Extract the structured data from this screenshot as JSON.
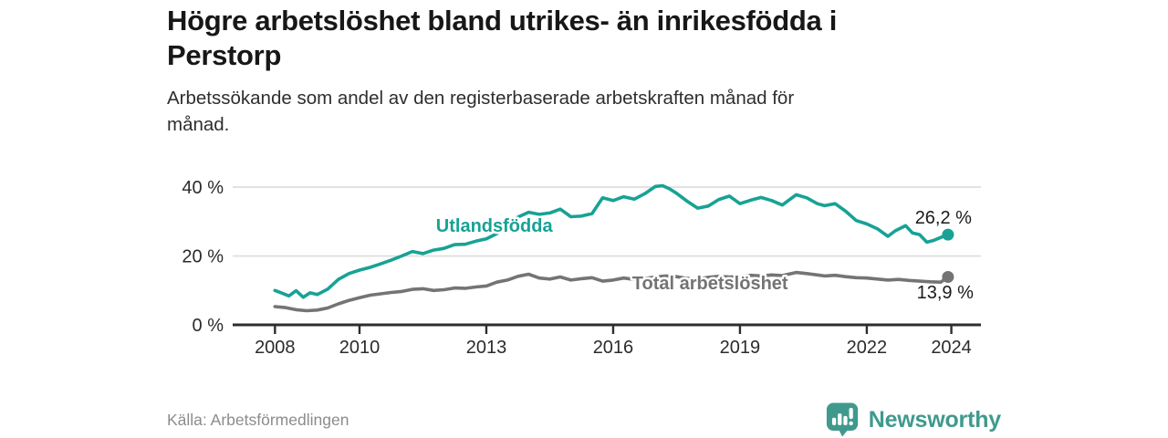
{
  "header": {
    "title_lines": [
      "Högre arbetslöshet bland utrikes- än inrikesfödda i",
      "Perstorp"
    ],
    "subtitle_lines": [
      "Arbetssökande som andel av den registerbaserade arbetskraften månad för",
      "månad."
    ]
  },
  "chart_data": {
    "type": "line",
    "title": "Högre arbetslöshet bland utrikes- än inrikesfödda i Perstorp",
    "subtitle": "Arbetssökande som andel av den registerbaserade arbetskraften månad för månad.",
    "xlabel": "",
    "ylabel": "",
    "grid": "horizontal",
    "legend_position": "inline-labels",
    "x_domain": [
      2007,
      2024.7
    ],
    "ylim": [
      0,
      42.4
    ],
    "yticks": [
      {
        "value": 0,
        "label": "0 %"
      },
      {
        "value": 20,
        "label": "20 %"
      },
      {
        "value": 40,
        "label": "40 %"
      }
    ],
    "xticks": [
      {
        "value": 2008,
        "label": "2008"
      },
      {
        "value": 2010,
        "label": "2010"
      },
      {
        "value": 2013,
        "label": "2013"
      },
      {
        "value": 2016,
        "label": "2016"
      },
      {
        "value": 2019,
        "label": "2019"
      },
      {
        "value": 2022,
        "label": "2022"
      },
      {
        "value": 2024,
        "label": "2024"
      }
    ],
    "series": [
      {
        "name": "Utlandsfödda",
        "color": "#17A295",
        "label": {
          "text": "Utlandsfödda",
          "x": 2011.81,
          "y": 27.0
        },
        "end_label": {
          "text": "26,2 %",
          "x": 2023.14,
          "y": 29.4
        },
        "end_value": 26.2,
        "points": [
          [
            2008.0,
            10.0
          ],
          [
            2008.17,
            9.2
          ],
          [
            2008.33,
            8.4
          ],
          [
            2008.5,
            9.9
          ],
          [
            2008.67,
            8.0
          ],
          [
            2008.83,
            9.3
          ],
          [
            2009.0,
            8.8
          ],
          [
            2009.25,
            10.4
          ],
          [
            2009.5,
            13.2
          ],
          [
            2009.75,
            14.9
          ],
          [
            2010.0,
            15.9
          ],
          [
            2010.25,
            16.7
          ],
          [
            2010.5,
            17.7
          ],
          [
            2010.75,
            18.8
          ],
          [
            2011.0,
            20.0
          ],
          [
            2011.25,
            21.3
          ],
          [
            2011.5,
            20.7
          ],
          [
            2011.75,
            21.7
          ],
          [
            2012.0,
            22.2
          ],
          [
            2012.25,
            23.3
          ],
          [
            2012.5,
            23.4
          ],
          [
            2012.75,
            24.3
          ],
          [
            2013.0,
            25.0
          ],
          [
            2013.25,
            26.5
          ],
          [
            2013.5,
            28.8
          ],
          [
            2013.75,
            31.3
          ],
          [
            2014.0,
            32.7
          ],
          [
            2014.25,
            32.1
          ],
          [
            2014.5,
            32.5
          ],
          [
            2014.75,
            33.6
          ],
          [
            2015.0,
            31.4
          ],
          [
            2015.25,
            31.6
          ],
          [
            2015.5,
            32.3
          ],
          [
            2015.75,
            36.9
          ],
          [
            2016.0,
            36.1
          ],
          [
            2016.25,
            37.2
          ],
          [
            2016.5,
            36.5
          ],
          [
            2016.75,
            38.1
          ],
          [
            2017.0,
            40.2
          ],
          [
            2017.17,
            40.4
          ],
          [
            2017.33,
            39.5
          ],
          [
            2017.5,
            38.2
          ],
          [
            2017.75,
            35.9
          ],
          [
            2018.0,
            33.9
          ],
          [
            2018.25,
            34.5
          ],
          [
            2018.5,
            36.4
          ],
          [
            2018.75,
            37.4
          ],
          [
            2019.0,
            35.2
          ],
          [
            2019.25,
            36.2
          ],
          [
            2019.5,
            37.0
          ],
          [
            2019.75,
            36.1
          ],
          [
            2020.0,
            34.8
          ],
          [
            2020.33,
            37.8
          ],
          [
            2020.58,
            36.9
          ],
          [
            2020.83,
            35.2
          ],
          [
            2021.0,
            34.6
          ],
          [
            2021.25,
            35.2
          ],
          [
            2021.5,
            33.0
          ],
          [
            2021.75,
            30.3
          ],
          [
            2022.0,
            29.3
          ],
          [
            2022.25,
            27.9
          ],
          [
            2022.5,
            25.7
          ],
          [
            2022.67,
            27.3
          ],
          [
            2022.92,
            28.8
          ],
          [
            2023.08,
            26.7
          ],
          [
            2023.25,
            26.2
          ],
          [
            2023.42,
            24.0
          ],
          [
            2023.58,
            24.5
          ],
          [
            2023.75,
            25.4
          ],
          [
            2023.92,
            26.2
          ]
        ]
      },
      {
        "name": "Total arbetslöshet",
        "color": "#747474",
        "label": {
          "text": "Total arbetslöshet",
          "x": 2016.45,
          "y": 10.3
        },
        "end_label": {
          "text": "13,9 %",
          "x": 2023.18,
          "y": 7.7
        },
        "end_value": 13.9,
        "points": [
          [
            2008.0,
            5.3
          ],
          [
            2008.25,
            5.0
          ],
          [
            2008.5,
            4.4
          ],
          [
            2008.75,
            4.1
          ],
          [
            2009.0,
            4.3
          ],
          [
            2009.25,
            4.9
          ],
          [
            2009.5,
            6.1
          ],
          [
            2009.75,
            7.1
          ],
          [
            2010.0,
            7.9
          ],
          [
            2010.25,
            8.6
          ],
          [
            2010.5,
            9.0
          ],
          [
            2010.75,
            9.4
          ],
          [
            2011.0,
            9.7
          ],
          [
            2011.25,
            10.3
          ],
          [
            2011.5,
            10.5
          ],
          [
            2011.75,
            10.0
          ],
          [
            2012.0,
            10.2
          ],
          [
            2012.25,
            10.7
          ],
          [
            2012.5,
            10.6
          ],
          [
            2012.75,
            11.0
          ],
          [
            2013.0,
            11.3
          ],
          [
            2013.25,
            12.4
          ],
          [
            2013.5,
            13.0
          ],
          [
            2013.75,
            14.1
          ],
          [
            2014.0,
            14.7
          ],
          [
            2014.25,
            13.6
          ],
          [
            2014.5,
            13.3
          ],
          [
            2014.75,
            13.9
          ],
          [
            2015.0,
            13.0
          ],
          [
            2015.25,
            13.4
          ],
          [
            2015.5,
            13.7
          ],
          [
            2015.75,
            12.7
          ],
          [
            2016.0,
            13.0
          ],
          [
            2016.25,
            13.6
          ],
          [
            2016.5,
            13.2
          ],
          [
            2016.75,
            13.5
          ],
          [
            2017.0,
            13.9
          ],
          [
            2017.25,
            14.2
          ],
          [
            2017.5,
            14.0
          ],
          [
            2017.75,
            13.5
          ],
          [
            2018.0,
            13.3
          ],
          [
            2018.25,
            13.8
          ],
          [
            2018.5,
            14.1
          ],
          [
            2018.75,
            13.9
          ],
          [
            2019.0,
            14.0
          ],
          [
            2019.25,
            14.4
          ],
          [
            2019.5,
            14.2
          ],
          [
            2019.75,
            14.5
          ],
          [
            2020.0,
            14.3
          ],
          [
            2020.33,
            15.2
          ],
          [
            2020.58,
            14.9
          ],
          [
            2020.83,
            14.5
          ],
          [
            2021.0,
            14.2
          ],
          [
            2021.25,
            14.4
          ],
          [
            2021.5,
            14.0
          ],
          [
            2021.75,
            13.7
          ],
          [
            2022.0,
            13.6
          ],
          [
            2022.25,
            13.3
          ],
          [
            2022.5,
            13.0
          ],
          [
            2022.75,
            13.2
          ],
          [
            2023.0,
            12.9
          ],
          [
            2023.25,
            12.7
          ],
          [
            2023.5,
            12.5
          ],
          [
            2023.75,
            12.4
          ],
          [
            2023.92,
            13.9
          ]
        ]
      }
    ]
  },
  "footer": {
    "source": "Källa: Arbetsförmedlingen",
    "brand": "Newsworthy",
    "brand_color": "#3F9A8D",
    "logo_icon": "bar-chart-speech-bubble"
  }
}
